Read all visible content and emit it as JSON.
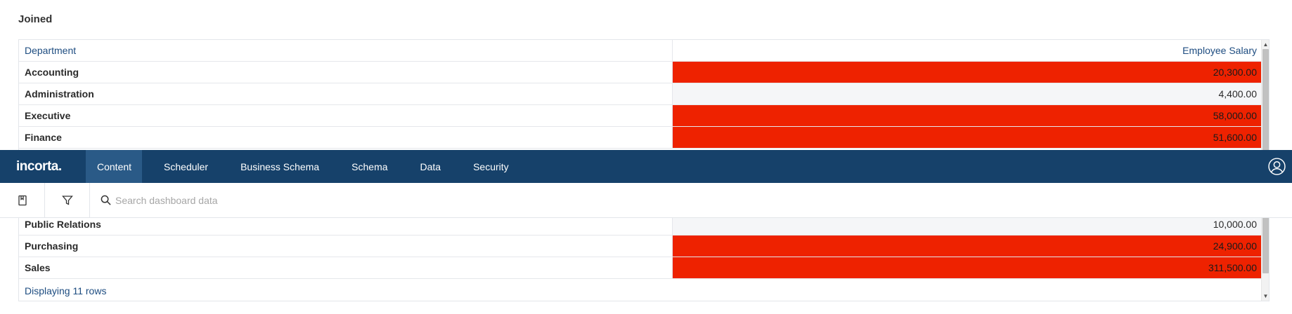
{
  "report": {
    "title": "Joined"
  },
  "table": {
    "headers": {
      "department": "Department",
      "salary": "Employee Salary"
    },
    "upper_rows": [
      {
        "department": "Accounting",
        "salary": "20,300.00",
        "highlight": "red"
      },
      {
        "department": "Administration",
        "salary": "4,400.00",
        "highlight": "gray"
      },
      {
        "department": "Executive",
        "salary": "58,000.00",
        "highlight": "red"
      },
      {
        "department": "Finance",
        "salary": "51,600.00",
        "highlight": "red"
      }
    ],
    "lower_rows": [
      {
        "department": "Public Relations",
        "salary": "10,000.00",
        "highlight": "gray"
      },
      {
        "department": "Purchasing",
        "salary": "24,900.00",
        "highlight": "red"
      },
      {
        "department": "Sales",
        "salary": "311,500.00",
        "highlight": "red"
      }
    ],
    "footer": "Displaying 11 rows",
    "colors": {
      "red": "#ee2200",
      "gray": "#f5f6f8",
      "header_text": "#1d4c80"
    }
  },
  "navbar": {
    "logo": "incorta.",
    "tabs": [
      {
        "label": "Content",
        "active": true
      },
      {
        "label": "Scheduler",
        "active": false
      },
      {
        "label": "Business Schema",
        "active": false
      },
      {
        "label": "Schema",
        "active": false
      },
      {
        "label": "Data",
        "active": false
      },
      {
        "label": "Security",
        "active": false
      }
    ],
    "background": "#16416a",
    "active_background": "#2a5a87",
    "user_icon": "user-circle-icon"
  },
  "toolbar": {
    "bookmark_icon": "bookmark-icon",
    "filter_icon": "filter-icon",
    "search_icon": "search-icon",
    "search_placeholder": "Search dashboard data",
    "search_value": ""
  }
}
